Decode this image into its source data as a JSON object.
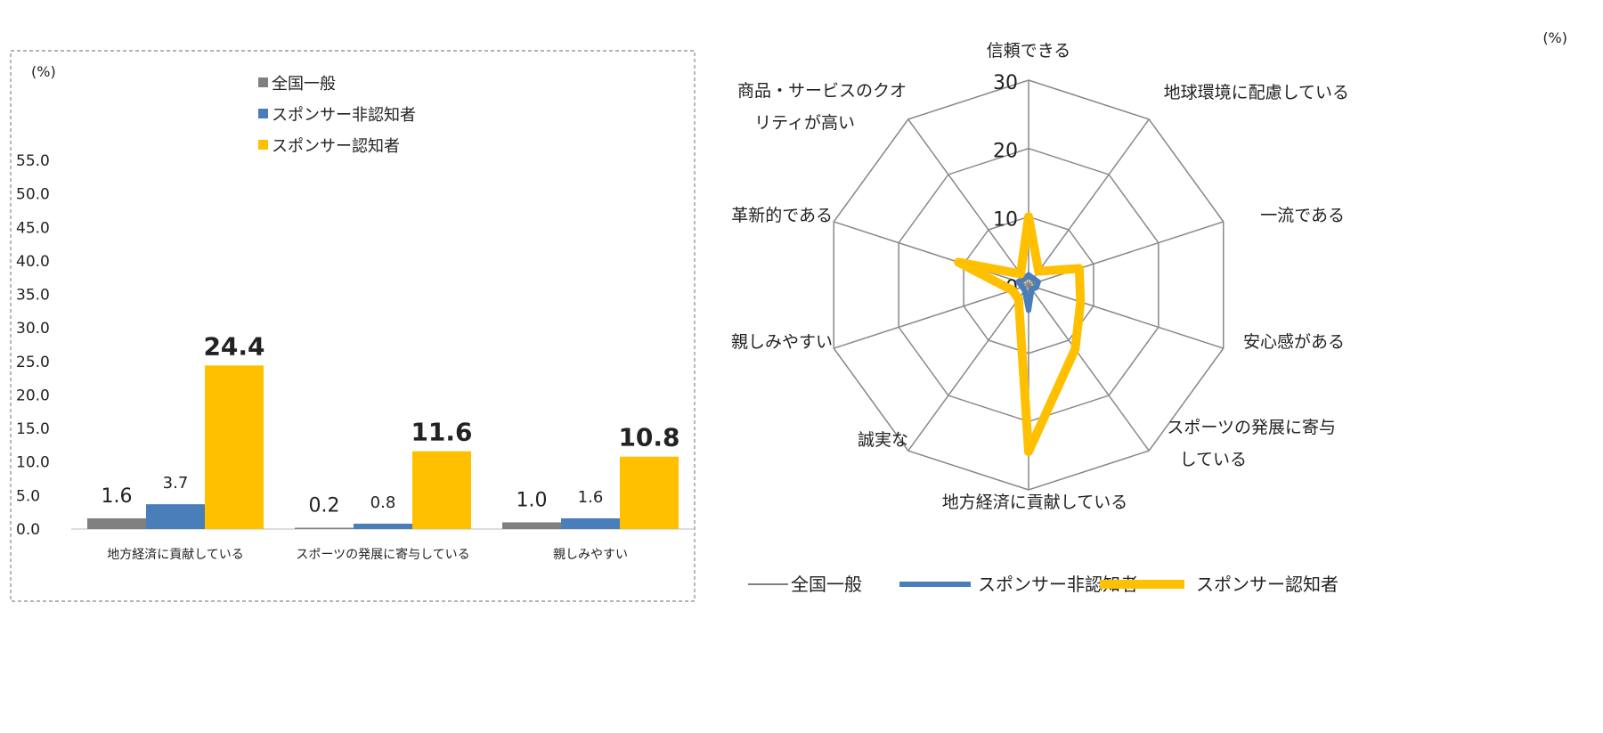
{
  "chart_data": [
    {
      "type": "bar",
      "ylabel": "(%)",
      "ylim": [
        0,
        55
      ],
      "yticks": [
        "0.0",
        "5.0",
        "10.0",
        "15.0",
        "20.0",
        "25.0",
        "30.0",
        "35.0",
        "40.0",
        "45.0",
        "50.0",
        "55.0"
      ],
      "categories": [
        "地方経済に貢献している",
        "スポーツの発展に寄与している",
        "親しみやすい"
      ],
      "series": [
        {
          "name": "全国一般",
          "color": "#808080",
          "values": [
            1.6,
            0.2,
            1.0
          ],
          "labels": [
            "1.6",
            "0.2",
            "1.0"
          ]
        },
        {
          "name": "スポンサー非認知者",
          "color": "#4a7ebb",
          "values": [
            3.7,
            0.8,
            1.6
          ],
          "labels": [
            "3.7",
            "0.8",
            "1.6"
          ]
        },
        {
          "name": "スポンサー認知者",
          "color": "#ffc000",
          "values": [
            24.4,
            11.6,
            10.8
          ],
          "labels": [
            "24.4",
            "11.6",
            "10.8"
          ]
        }
      ],
      "legend": "top-right"
    },
    {
      "type": "radar",
      "unit": "(%)",
      "rmax": 30,
      "rticks": [
        "0",
        "10",
        "20",
        "30"
      ],
      "axes": [
        "信頼できる",
        "地球環境に配慮している",
        "一流である",
        "安心感がある",
        "スポーツの発展に寄与している",
        "地方経済に貢献している",
        "誠実な",
        "革新的である",
        "親しみやすい",
        "商品・サービスのクオリティが高い"
      ],
      "series": [
        {
          "name": "全国一般",
          "color": "#808080",
          "values": [
            1.0,
            0.8,
            0.8,
            0.8,
            0.2,
            1.6,
            0.6,
            0.6,
            1.0,
            0.8
          ]
        },
        {
          "name": "スポンサー非認知者",
          "color": "#4a7ebb",
          "values": [
            1.5,
            1.2,
            1.5,
            1.2,
            0.8,
            3.7,
            1.0,
            1.0,
            1.6,
            1.2
          ]
        },
        {
          "name": "スポンサー認知者",
          "color": "#ffc000",
          "values": [
            10.0,
            2.5,
            7.8,
            8.0,
            11.6,
            24.4,
            2.5,
            2.5,
            10.8,
            2.0
          ]
        }
      ],
      "legend": "bottom"
    }
  ]
}
